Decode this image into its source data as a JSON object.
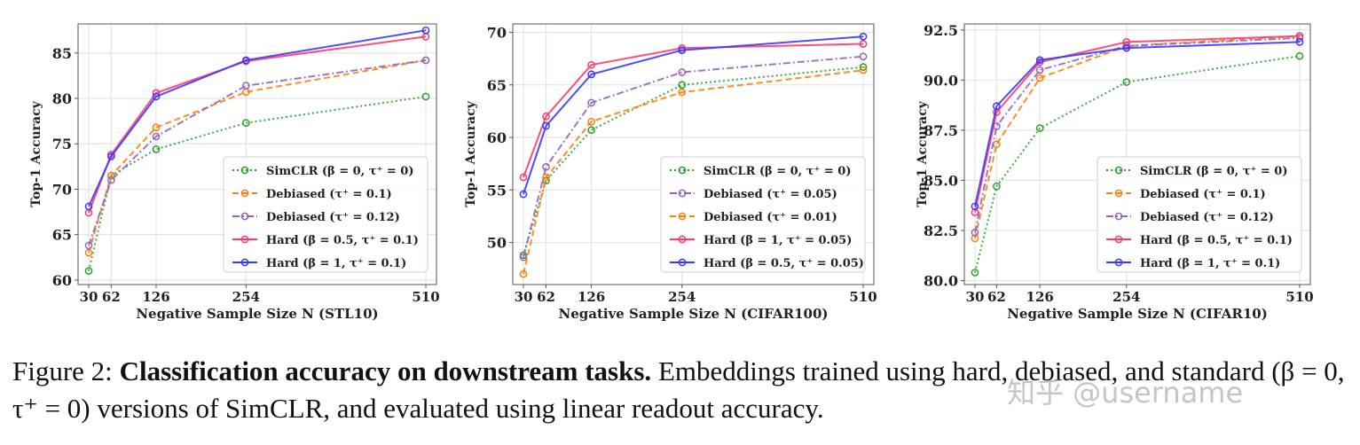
{
  "chart_data": [
    {
      "type": "line",
      "xlabel": "Negative Sample Size N (STL10)",
      "ylabel": "Top-1 Accuracy",
      "x": [
        30,
        62,
        126,
        254,
        510
      ],
      "xticks": [
        "30",
        "62",
        "126",
        "254",
        "510"
      ],
      "yticks": [
        "60",
        "65",
        "70",
        "75",
        "80",
        "85"
      ],
      "ylim": [
        59.5,
        88.2
      ],
      "legend_position": "lower-right",
      "series": [
        {
          "name": "SimCLR (β = 0, τ⁺ = 0)",
          "color": "#2ca02c",
          "style": "dotted",
          "values": [
            61.0,
            71.5,
            74.4,
            77.3,
            80.2
          ]
        },
        {
          "name": "Debiased (τ⁺ = 0.1)",
          "color": "#ff7f0e",
          "style": "dashed",
          "values": [
            63.0,
            71.5,
            76.8,
            80.7,
            84.2
          ]
        },
        {
          "name": "Debiased (τ⁺ = 0.12)",
          "color": "#9467bd",
          "style": "dashdot",
          "values": [
            63.8,
            71.0,
            75.8,
            81.4,
            84.2
          ]
        },
        {
          "name": "Hard (β = 0.5, τ⁺ = 0.1)",
          "color": "#ff3b6b",
          "style": "solid",
          "values": [
            67.4,
            73.8,
            80.6,
            84.1,
            86.8
          ]
        },
        {
          "name": "Hard (β = 1, τ⁺ = 0.1)",
          "color": "#3a3aff",
          "style": "solid",
          "values": [
            68.1,
            73.6,
            80.2,
            84.2,
            87.5
          ]
        }
      ]
    },
    {
      "type": "line",
      "xlabel": "Negative Sample Size N (CIFAR100)",
      "ylabel": "Top-1 Accuracy",
      "x": [
        30,
        62,
        126,
        254,
        510
      ],
      "xticks": [
        "30",
        "62",
        "126",
        "254",
        "510"
      ],
      "yticks": [
        "50",
        "55",
        "60",
        "65",
        "70"
      ],
      "ylim": [
        46.0,
        70.8
      ],
      "legend_position": "lower-right",
      "series": [
        {
          "name": "SimCLR (β = 0, τ⁺ = 0)",
          "color": "#2ca02c",
          "style": "dotted",
          "values": [
            48.8,
            55.9,
            60.7,
            65.0,
            66.7
          ]
        },
        {
          "name": "Debiased (τ⁺ = 0.05)",
          "color": "#9467bd",
          "style": "dashdot",
          "values": [
            48.6,
            57.2,
            63.3,
            66.2,
            67.7
          ]
        },
        {
          "name": "Debiased (τ⁺ = 0.01)",
          "color": "#ff7f0e",
          "style": "dashed",
          "values": [
            47.0,
            56.2,
            61.5,
            64.3,
            66.4
          ]
        },
        {
          "name": "Hard (β = 1, τ⁺ = 0.05)",
          "color": "#ff3b6b",
          "style": "solid",
          "values": [
            56.2,
            62.0,
            66.9,
            68.5,
            68.9
          ]
        },
        {
          "name": "Hard (β = 0.5, τ⁺ = 0.05)",
          "color": "#3a3aff",
          "style": "solid",
          "values": [
            54.6,
            61.1,
            66.0,
            68.3,
            69.6
          ]
        }
      ]
    },
    {
      "type": "line",
      "xlabel": "Negative Sample Size N (CIFAR10)",
      "ylabel": "Top-1 Accuracy",
      "x": [
        30,
        62,
        126,
        254,
        510
      ],
      "xticks": [
        "30",
        "62",
        "126",
        "254",
        "510"
      ],
      "yticks": [
        "80.0",
        "82.5",
        "85.0",
        "87.5",
        "90.0",
        "92.5"
      ],
      "ylim": [
        79.8,
        92.8
      ],
      "legend_position": "lower-right",
      "series": [
        {
          "name": "SimCLR (β = 0, τ⁺ = 0)",
          "color": "#2ca02c",
          "style": "dotted",
          "values": [
            80.4,
            84.7,
            87.6,
            89.9,
            91.2
          ]
        },
        {
          "name": "Debiased (τ⁺ = 0.1)",
          "color": "#ff7f0e",
          "style": "dashed",
          "values": [
            82.1,
            86.8,
            90.1,
            91.7,
            92.2
          ]
        },
        {
          "name": "Debiased (τ⁺ = 0.12)",
          "color": "#9467bd",
          "style": "dashdot",
          "values": [
            82.4,
            87.7,
            90.5,
            91.7,
            92.1
          ]
        },
        {
          "name": "Hard (β = 0.5, τ⁺ = 0.1)",
          "color": "#ff3b6b",
          "style": "solid",
          "values": [
            83.4,
            88.4,
            90.9,
            91.9,
            92.2
          ]
        },
        {
          "name": "Hard (β = 1, τ⁺ = 0.1)",
          "color": "#3a3aff",
          "style": "solid",
          "values": [
            83.7,
            88.7,
            91.0,
            91.6,
            91.9
          ]
        }
      ]
    }
  ],
  "caption": {
    "prefix": "Figure 2: ",
    "bold": "Classification accuracy on downstream tasks.",
    "rest": " Embeddings trained using hard, debiased, and standard (β = 0, τ⁺ = 0) versions of SimCLR, and evaluated using linear readout accuracy."
  },
  "watermark": "知乎 @username"
}
